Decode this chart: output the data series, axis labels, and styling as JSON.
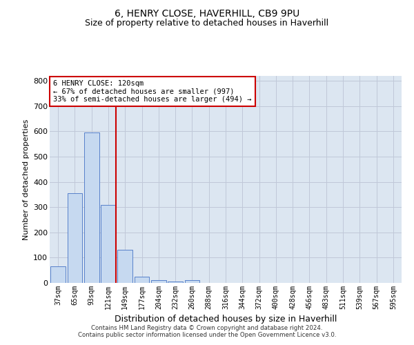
{
  "title1": "6, HENRY CLOSE, HAVERHILL, CB9 9PU",
  "title2": "Size of property relative to detached houses in Haverhill",
  "xlabel": "Distribution of detached houses by size in Haverhill",
  "ylabel": "Number of detached properties",
  "footer1": "Contains HM Land Registry data © Crown copyright and database right 2024.",
  "footer2": "Contains public sector information licensed under the Open Government Licence v3.0.",
  "categories": [
    "37sqm",
    "65sqm",
    "93sqm",
    "121sqm",
    "149sqm",
    "177sqm",
    "204sqm",
    "232sqm",
    "260sqm",
    "288sqm",
    "316sqm",
    "344sqm",
    "372sqm",
    "400sqm",
    "428sqm",
    "456sqm",
    "483sqm",
    "511sqm",
    "539sqm",
    "567sqm",
    "595sqm"
  ],
  "values": [
    65,
    355,
    595,
    310,
    130,
    25,
    10,
    5,
    10,
    0,
    0,
    0,
    0,
    0,
    0,
    0,
    0,
    0,
    0,
    0,
    0
  ],
  "bar_color": "#c6d9f0",
  "bar_edge_color": "#4472c4",
  "highlight_index": 3,
  "highlight_color": "#cc0000",
  "ylim": [
    0,
    820
  ],
  "yticks": [
    0,
    100,
    200,
    300,
    400,
    500,
    600,
    700,
    800
  ],
  "annotation_line1": "6 HENRY CLOSE: 120sqm",
  "annotation_line2": "← 67% of detached houses are smaller (997)",
  "annotation_line3": "33% of semi-detached houses are larger (494) →",
  "annotation_box_color": "#ffffff",
  "annotation_box_edge": "#cc0000",
  "grid_color": "#c0c8d8",
  "background_color": "#dce6f1",
  "title1_fontsize": 10,
  "title2_fontsize": 9,
  "ylabel_fontsize": 8,
  "xlabel_fontsize": 9
}
